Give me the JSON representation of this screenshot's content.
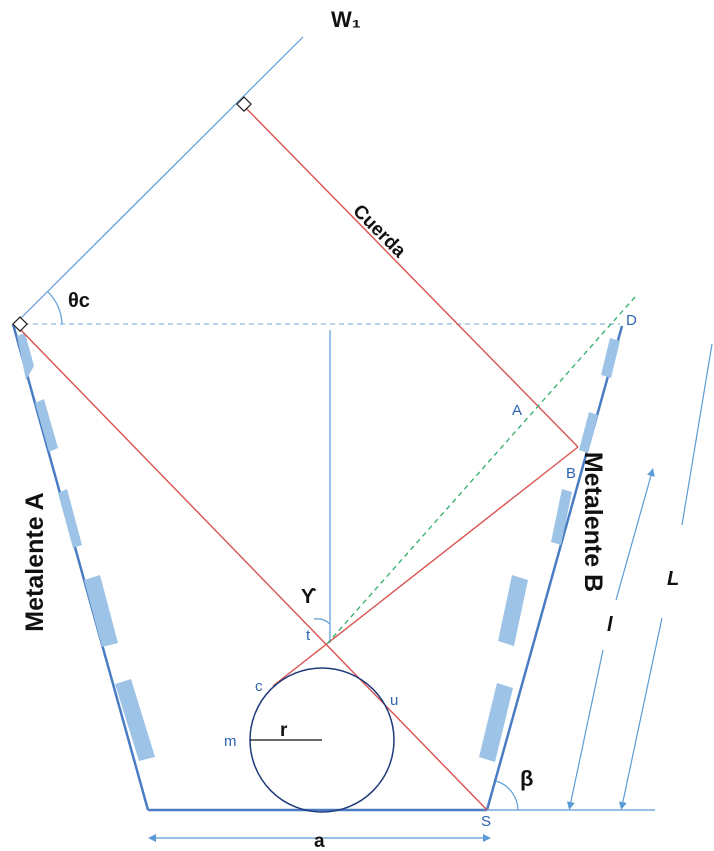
{
  "labels": {
    "w1": "W₁",
    "theta_c": "θc",
    "cuerda": "Cuerda",
    "point_d": "D",
    "point_a": "A",
    "point_b": "B",
    "metalente_a": "Metalente A",
    "metalente_b": "Metalente B",
    "gamma": "ϒ",
    "point_t": "t",
    "point_c": "c",
    "point_u": "u",
    "point_m": "m",
    "radius_r": "r",
    "beta": "β",
    "point_s": "S",
    "dim_a": "a",
    "dim_l_small": "l",
    "dim_l_big": "L"
  },
  "colors": {
    "frame": "#4a7cc4",
    "light_line": "#5b9bd5",
    "segment_fill": "#9dc3e6",
    "ray_red": "#d9534f",
    "dashed_green": "#3cb371",
    "dashed_blue": "#8fb4e3",
    "label_blue": "#2e64b0",
    "text_black": "#111111"
  }
}
